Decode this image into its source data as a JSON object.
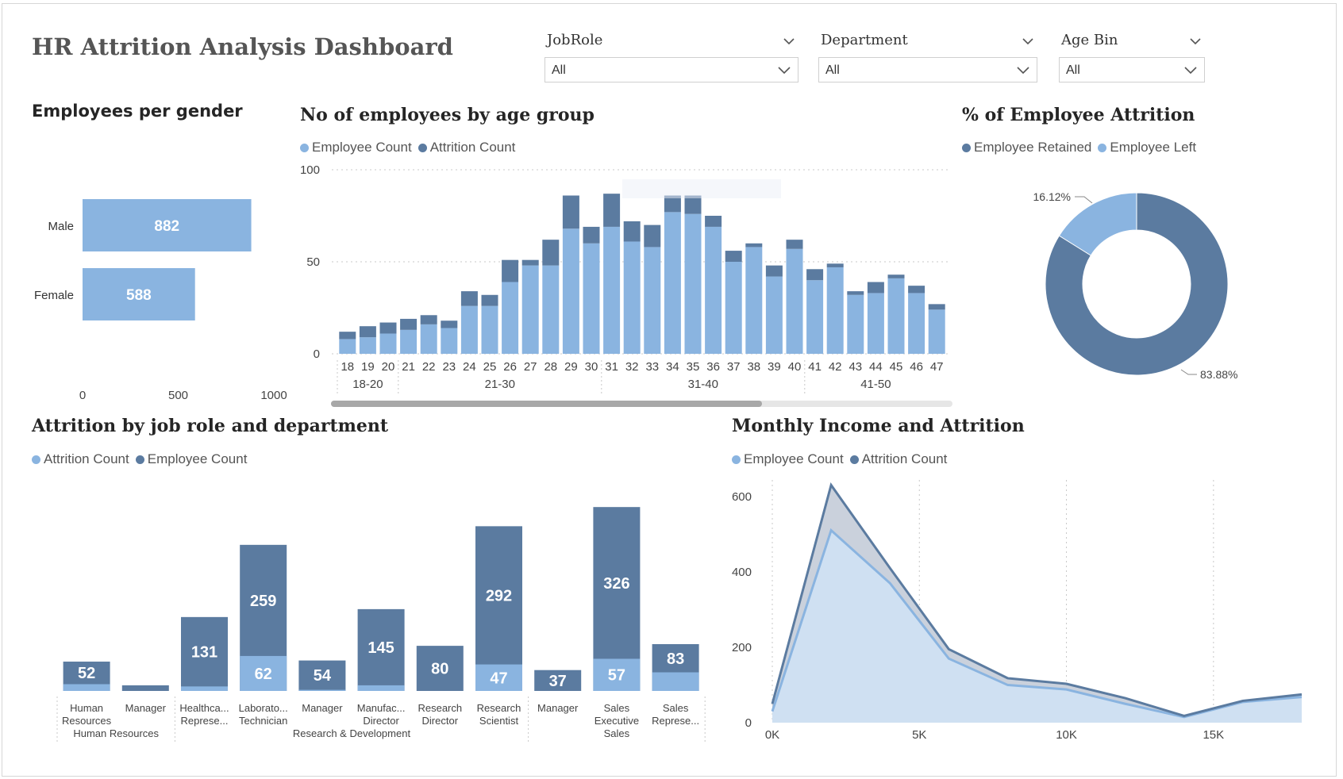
{
  "dashboard": {
    "title": "HR Attrition Analysis Dashboard"
  },
  "slicers": [
    {
      "label": "JobRole",
      "value": "All"
    },
    {
      "label": "Department",
      "value": "All"
    },
    {
      "label": "Age Bin",
      "value": "All"
    }
  ],
  "colors": {
    "light": "#8ab4e0",
    "dark": "#5b7ba0",
    "area_fill": "#cfe0f2"
  },
  "gender_chart": {
    "title": "Employees per gender",
    "chart_data": {
      "type": "bar",
      "orientation": "horizontal",
      "categories": [
        "Male",
        "Female"
      ],
      "values": [
        882,
        588
      ],
      "xlim": [
        0,
        1000
      ],
      "xticks": [
        "0",
        "500",
        "1000"
      ]
    }
  },
  "age_chart": {
    "title": "No of employees by age group",
    "legend": [
      "Employee Count",
      "Attrition Count"
    ],
    "chart_data": {
      "type": "bar",
      "stacked": true,
      "categories": [
        "18",
        "19",
        "20",
        "21",
        "22",
        "23",
        "24",
        "25",
        "26",
        "27",
        "28",
        "29",
        "30",
        "31",
        "32",
        "33",
        "34",
        "35",
        "36",
        "37",
        "38",
        "39",
        "40",
        "41",
        "42",
        "43",
        "44",
        "45",
        "46",
        "47"
      ],
      "groups": [
        {
          "label": "18-20",
          "from": "18",
          "to": "20"
        },
        {
          "label": "21-30",
          "from": "21",
          "to": "30"
        },
        {
          "label": "31-40",
          "from": "31",
          "to": "40"
        },
        {
          "label": "41-50",
          "from": "41",
          "to": "47"
        }
      ],
      "series": [
        {
          "name": "Employee Count",
          "values": [
            8,
            9,
            11,
            13,
            16,
            14,
            26,
            26,
            39,
            48,
            48,
            68,
            60,
            69,
            61,
            58,
            77,
            76,
            69,
            50,
            58,
            42,
            57,
            40,
            47,
            32,
            33,
            41,
            33,
            24
          ]
        },
        {
          "name": "Attrition Count",
          "values": [
            4,
            6,
            6,
            6,
            5,
            4,
            8,
            6,
            12,
            3,
            14,
            18,
            9,
            18,
            11,
            12,
            9,
            10,
            6,
            6,
            2,
            6,
            5,
            6,
            2,
            2,
            6,
            2,
            4,
            3
          ]
        }
      ],
      "ylim": [
        0,
        100
      ],
      "yticks": [
        "0",
        "50",
        "100"
      ]
    }
  },
  "attrition_donut": {
    "title": "% of Employee Attrition",
    "legend": [
      "Employee Retained",
      "Employee Left"
    ],
    "chart_data": {
      "type": "pie",
      "donut": true,
      "categories": [
        "Employee Retained",
        "Employee Left"
      ],
      "values": [
        83.88,
        16.12
      ],
      "labels": [
        "83.88%",
        "16.12%"
      ]
    }
  },
  "jobrole_chart": {
    "title": "Attrition by job role and department",
    "legend": [
      "Attrition Count",
      "Employee Count"
    ],
    "chart_data": {
      "type": "bar",
      "stacked": true,
      "categories": [
        {
          "line1": "Human",
          "line2": "Resources"
        },
        {
          "line1": "Manager",
          "line2": ""
        },
        {
          "line1": "Healthca...",
          "line2": "Represe..."
        },
        {
          "line1": "Laborato...",
          "line2": "Technician"
        },
        {
          "line1": "Manager",
          "line2": ""
        },
        {
          "line1": "Manufac...",
          "line2": "Director"
        },
        {
          "line1": "Research",
          "line2": "Director"
        },
        {
          "line1": "Research",
          "line2": "Scientist"
        },
        {
          "line1": "Manager",
          "line2": ""
        },
        {
          "line1": "Sales",
          "line2": "Executive"
        },
        {
          "line1": "Sales",
          "line2": "Represe..."
        }
      ],
      "departments": [
        {
          "label": "Human Resources",
          "from": 0,
          "to": 1
        },
        {
          "label": "Research & Development",
          "from": 2,
          "to": 7
        },
        {
          "label": "Sales",
          "from": 8,
          "to": 10
        }
      ],
      "series": [
        {
          "name": "Attrition Count",
          "values": [
            12,
            0,
            8,
            62,
            2,
            10,
            0,
            47,
            0,
            57,
            33
          ]
        },
        {
          "name": "Employee Count",
          "values": [
            52,
            10,
            131,
            259,
            54,
            145,
            80,
            292,
            37,
            326,
            83
          ]
        }
      ],
      "labels_dark": [
        "52",
        "",
        "131",
        "259",
        "54",
        "145",
        "80",
        "292",
        "37",
        "326",
        "83"
      ],
      "labels_light": [
        "",
        "",
        "",
        "62",
        "",
        "",
        "",
        "47",
        "",
        "57",
        ""
      ]
    }
  },
  "income_chart": {
    "title": "Monthly Income and Attrition",
    "legend": [
      "Employee Count",
      "Attrition Count"
    ],
    "chart_data": {
      "type": "area",
      "x": [
        0,
        2000,
        4000,
        6000,
        8000,
        10000,
        12000,
        14000,
        16000,
        18000
      ],
      "series": [
        {
          "name": "Employee Count",
          "values": [
            30,
            510,
            370,
            170,
            100,
            88,
            50,
            15,
            55,
            68
          ]
        },
        {
          "name": "Attrition Count",
          "values": [
            50,
            630,
            410,
            195,
            118,
            103,
            65,
            18,
            58,
            75
          ]
        }
      ],
      "ylim": [
        0,
        650
      ],
      "yticks": [
        "0",
        "200",
        "400",
        "600"
      ],
      "xlim": [
        0,
        18000
      ],
      "xticks": [
        "0K",
        "5K",
        "10K",
        "15K"
      ]
    }
  }
}
